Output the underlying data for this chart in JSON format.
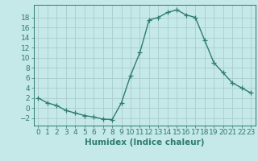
{
  "x": [
    0,
    1,
    2,
    3,
    4,
    5,
    6,
    7,
    8,
    9,
    10,
    11,
    12,
    13,
    14,
    15,
    16,
    17,
    18,
    19,
    20,
    21,
    22,
    23
  ],
  "y": [
    2,
    1,
    0.5,
    -0.5,
    -1,
    -1.5,
    -1.8,
    -2.2,
    -2.3,
    1,
    6.5,
    11,
    17.5,
    18,
    19,
    19.5,
    18.5,
    18,
    13.5,
    9,
    7,
    5,
    4,
    3
  ],
  "line_color": "#2e7d6e",
  "marker": "+",
  "bg_color": "#c5e8e8",
  "grid_color": "#aacccc",
  "xlabel": "Humidex (Indice chaleur)",
  "xlim": [
    -0.5,
    23.5
  ],
  "ylim": [
    -3.5,
    20.5
  ],
  "yticks": [
    -2,
    0,
    2,
    4,
    6,
    8,
    10,
    12,
    14,
    16,
    18
  ],
  "xticks": [
    0,
    1,
    2,
    3,
    4,
    5,
    6,
    7,
    8,
    9,
    10,
    11,
    12,
    13,
    14,
    15,
    16,
    17,
    18,
    19,
    20,
    21,
    22,
    23
  ],
  "font_color": "#2e7d6e",
  "linewidth": 1.0,
  "markersize": 4,
  "tick_fontsize": 6.5,
  "xlabel_fontsize": 7.5
}
